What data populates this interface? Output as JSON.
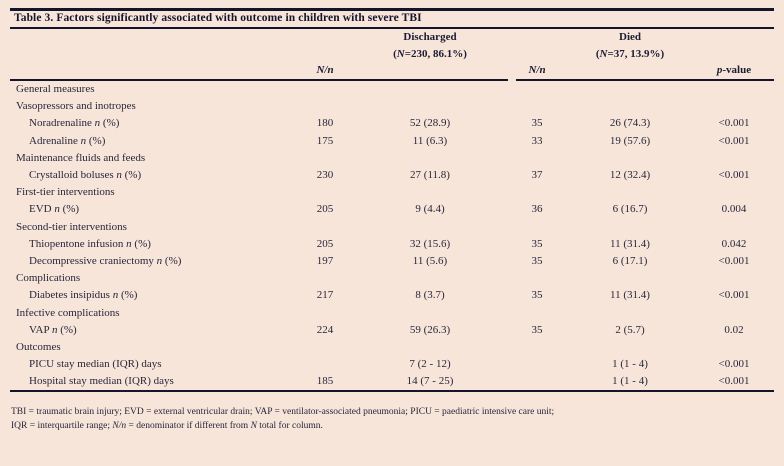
{
  "table": {
    "title": "Table 3. Factors significantly associated with outcome in children with severe TBI",
    "header": {
      "discharged": "Discharged",
      "discharged_n_pre": "(",
      "discharged_n_it": "N",
      "discharged_n_post": "=230, 86.1%)",
      "died": "Died",
      "died_n_pre": "(",
      "died_n_it": "N",
      "died_n_post": "=37, 13.9%)",
      "nn": "N/n",
      "p_pre": "p",
      "p_post": "-value"
    },
    "rows": [
      {
        "type": "section",
        "pre": "General measures"
      },
      {
        "type": "section",
        "pre": "Vasopressors and inotropes"
      },
      {
        "type": "item",
        "pre": "Noradrenaline ",
        "it": "n",
        "post": " (%)",
        "n1": "180",
        "v1": "52 (28.9)",
        "n2": "35",
        "v2": "26 (74.3)",
        "p": "<0.001"
      },
      {
        "type": "item",
        "pre": "Adrenaline ",
        "it": "n",
        "post": " (%)",
        "n1": "175",
        "v1": "11 (6.3)",
        "n2": "33",
        "v2": "19 (57.6)",
        "p": "<0.001"
      },
      {
        "type": "section",
        "pre": "Maintenance fluids and feeds"
      },
      {
        "type": "item",
        "pre": "Crystalloid boluses ",
        "it": "n",
        "post": " (%)",
        "n1": "230",
        "v1": "27 (11.8)",
        "n2": "37",
        "v2": "12 (32.4)",
        "p": "<0.001"
      },
      {
        "type": "section",
        "pre": "First-tier interventions"
      },
      {
        "type": "item",
        "pre": "EVD ",
        "it": "n",
        "post": " (%)",
        "n1": "205",
        "v1": "9 (4.4)",
        "n2": "36",
        "v2": "6 (16.7)",
        "p": "0.004"
      },
      {
        "type": "section",
        "pre": "Second-tier interventions"
      },
      {
        "type": "item",
        "pre": "Thiopentone infusion ",
        "it": "n",
        "post": " (%)",
        "n1": "205",
        "v1": "32 (15.6)",
        "n2": "35",
        "v2": "11 (31.4)",
        "p": "0.042"
      },
      {
        "type": "item",
        "pre": "Decompressive craniectomy ",
        "it": "n",
        "post": " (%)",
        "n1": "197",
        "v1": "11 (5.6)",
        "n2": "35",
        "v2": "6 (17.1)",
        "p": "<0.001"
      },
      {
        "type": "section",
        "pre": "Complications"
      },
      {
        "type": "item",
        "pre": "Diabetes insipidus ",
        "it": "n",
        "post": " (%)",
        "n1": "217",
        "v1": "8 (3.7)",
        "n2": "35",
        "v2": "11 (31.4)",
        "p": "<0.001"
      },
      {
        "type": "section",
        "pre": "Infective complications"
      },
      {
        "type": "item",
        "pre": "VAP ",
        "it": "n",
        "post": " (%)",
        "n1": "224",
        "v1": "59 (26.3)",
        "n2": "35",
        "v2": "2 (5.7)",
        "p": "0.02"
      },
      {
        "type": "section",
        "pre": "Outcomes"
      },
      {
        "type": "item",
        "pre": "PICU stay median (IQR) days",
        "v1": "7 (2 - 12)",
        "v2": "1 (1 - 4)",
        "p": "<0.001"
      },
      {
        "type": "item",
        "pre": "Hospital stay median (IQR) days",
        "n1": "185",
        "v1": "14 (7 - 25)",
        "v2": "1 (1 - 4)",
        "p": "<0.001"
      }
    ]
  },
  "footnote": {
    "line1": "TBI = traumatic brain injury; EVD = external ventricular drain; VAP = ventilator-associated pneumonia; PICU = paediatric intensive care unit;",
    "l2_t1": "IQR = interquartile range; ",
    "l2_i1": "N/n",
    "l2_t2": " = denominator if different from ",
    "l2_i2": "N",
    "l2_t3": " total for column."
  },
  "colors": {
    "background": "#f8e5da",
    "text": "#26263a",
    "rule": "#14142a"
  }
}
